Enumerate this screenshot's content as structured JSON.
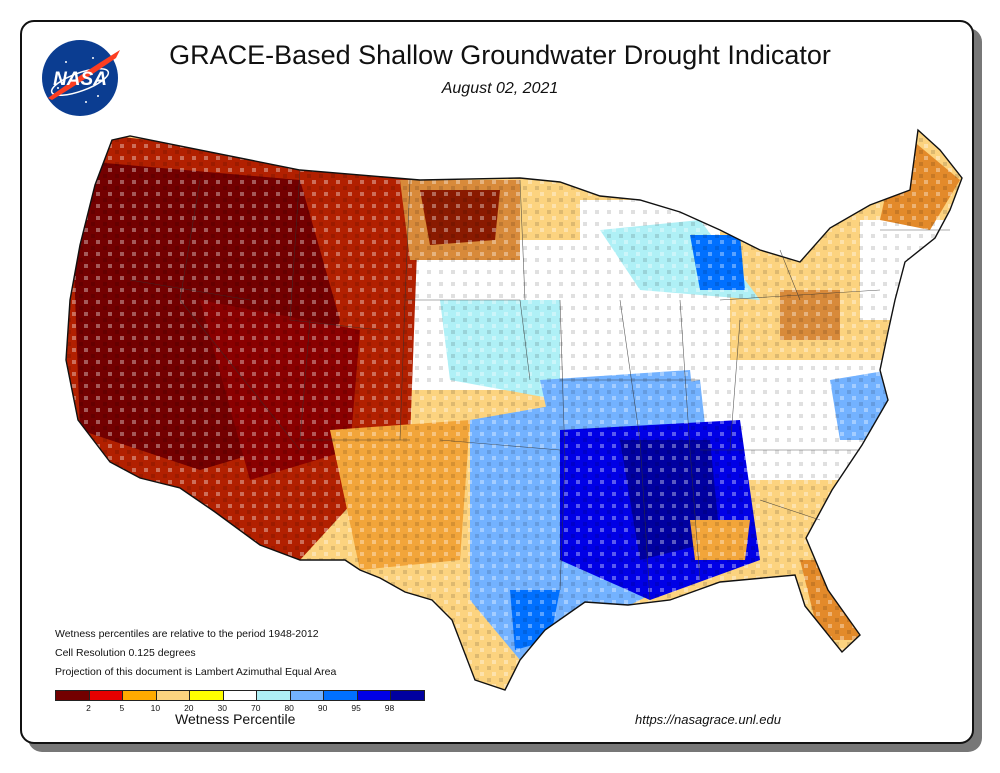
{
  "header": {
    "title": "GRACE-Based Shallow Groundwater Drought Indicator",
    "date": "August 02, 2021",
    "logo_text": "NASA"
  },
  "notes": [
    "Wetness percentiles are relative to the period 1948-2012",
    "Cell Resolution 0.125 degrees",
    "Projection of this document is Lambert Azimuthal Equal Area"
  ],
  "legend": {
    "title": "Wetness Percentile",
    "ticks": [
      "2",
      "5",
      "10",
      "20",
      "30",
      "70",
      "80",
      "90",
      "95",
      "98"
    ],
    "colors": [
      "#730000",
      "#e60000",
      "#ffaa00",
      "#fcd37f",
      "#ffff00",
      "#ffffff",
      "#aff0f6",
      "#73b2ff",
      "#0070ff",
      "#0000e6",
      "#0000a0"
    ]
  },
  "footer": {
    "url": "https://nasagrace.unl.edu"
  }
}
